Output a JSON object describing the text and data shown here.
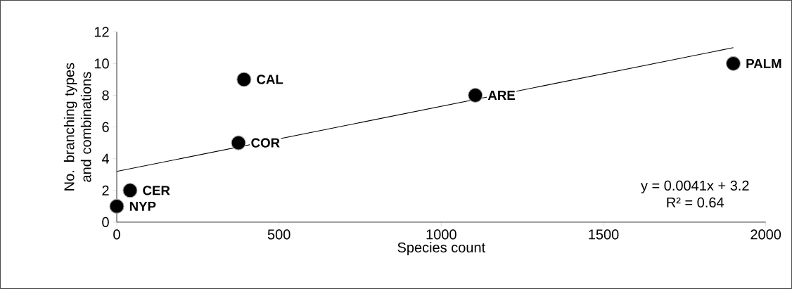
{
  "chart_data": {
    "type": "scatter",
    "xlabel": "Species count",
    "ylabel": "No. branching types and combinations",
    "xlim": [
      0,
      2000
    ],
    "ylim": [
      0,
      12
    ],
    "xticks": [
      0,
      500,
      1000,
      1500,
      2000
    ],
    "yticks": [
      0,
      2,
      4,
      6,
      8,
      10,
      12
    ],
    "marker": "circle",
    "series": [
      {
        "color": "#000000",
        "x": [
          0,
          41,
          375,
          392,
          1105,
          1900
        ],
        "values": [
          1,
          2,
          5,
          9,
          8,
          10
        ]
      },
      {
        "type": "line",
        "color": "#000000",
        "x": [
          0,
          1900
        ],
        "values": [
          3.2,
          11.0
        ],
        "line_style": "solid",
        "marker": "none"
      }
    ],
    "annotations": [
      {
        "text": "NYP",
        "x": 0,
        "y": 1
      },
      {
        "text": "CER",
        "x": 41,
        "y": 2
      },
      {
        "text": "COR",
        "x": 375,
        "y": 5
      },
      {
        "text": "CAL",
        "x": 392,
        "y": 9
      },
      {
        "text": "ARE",
        "x": 1105,
        "y": 8
      },
      {
        "text": "PALM",
        "x": 1900,
        "y": 10
      },
      "y = 0.0041x + 3.2",
      "R² = 0.64"
    ]
  }
}
